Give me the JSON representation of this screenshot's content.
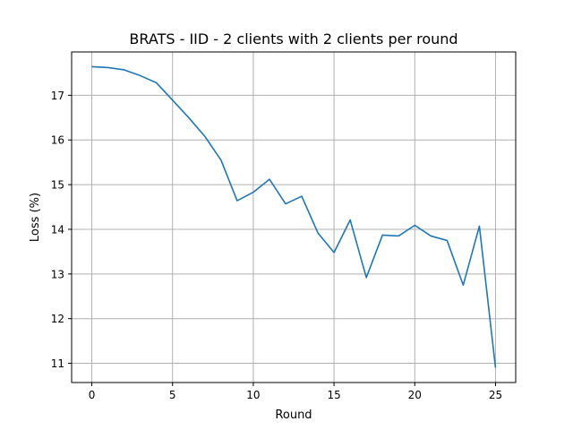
{
  "chart_data": {
    "type": "line",
    "title": "BRATS - IID - 2 clients with 2 clients per round",
    "xlabel": "Round",
    "ylabel": "Loss (%)",
    "xlim": [
      -1.25,
      26.25
    ],
    "ylim": [
      10.57,
      17.97
    ],
    "xticks": [
      0,
      5,
      10,
      15,
      20,
      25
    ],
    "yticks": [
      11,
      12,
      13,
      14,
      15,
      16,
      17
    ],
    "grid": true,
    "x": [
      0,
      1,
      2,
      3,
      4,
      5,
      6,
      7,
      8,
      9,
      10,
      11,
      12,
      13,
      14,
      15,
      16,
      17,
      18,
      19,
      20,
      21,
      22,
      23,
      24,
      25
    ],
    "series": [
      {
        "color": "#1f77b4",
        "values": [
          17.64,
          17.62,
          17.57,
          17.44,
          17.28,
          16.89,
          16.5,
          16.08,
          15.55,
          14.64,
          14.83,
          15.12,
          14.57,
          14.74,
          13.92,
          13.48,
          14.21,
          12.92,
          13.87,
          13.85,
          14.09,
          13.85,
          13.75,
          12.75,
          14.07,
          10.9
        ]
      }
    ]
  }
}
